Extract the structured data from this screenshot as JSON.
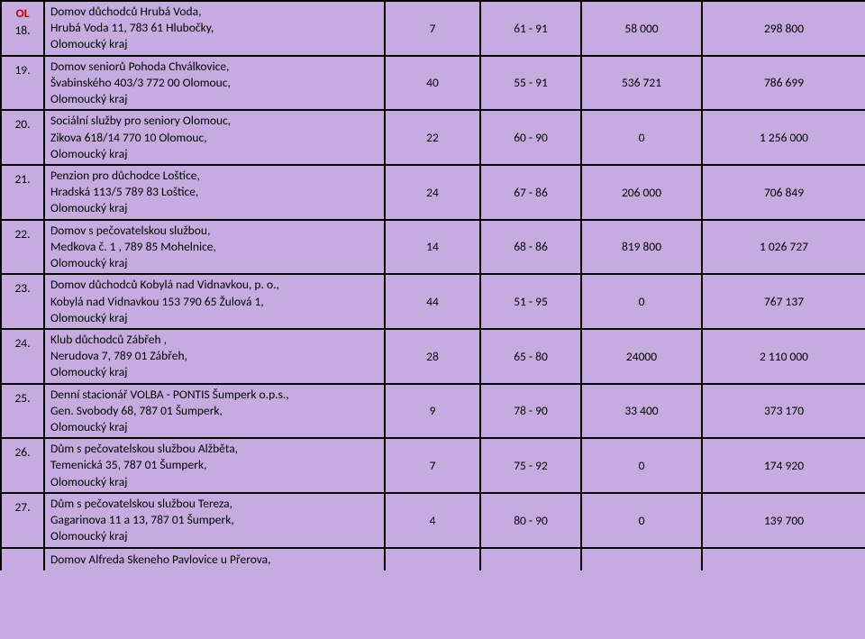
{
  "background": "#c6abe1",
  "rows": [
    {
      "region": "OL",
      "num": "18.",
      "desc_lines": [
        "Domov důchodců Hrubá Voda,",
        "Hrubá Voda 11, 783 61 Hlubočky,",
        "Olomoucký kraj"
      ],
      "c1": "7",
      "c2": "61 - 91",
      "c3": "58 000",
      "c4": "298 800"
    },
    {
      "num": "19.",
      "desc_lines": [
        "Domov seniorů Pohoda Chválkovice,",
        "Švabinského 403/3 772 00 Olomouc,",
        "Olomoucký kraj"
      ],
      "c1": "40",
      "c2": "55 - 91",
      "c3": "536 721",
      "c4": "786 699"
    },
    {
      "num": "20.",
      "desc_lines": [
        "Sociální služby pro seniory Olomouc,",
        "Zikova 618/14 770 10 Olomouc,",
        "Olomoucký kraj"
      ],
      "c1": "22",
      "c2": "60 - 90",
      "c3": "0",
      "c4": "1 256 000"
    },
    {
      "num": "21.",
      "desc_lines": [
        "Penzion pro důchodce Loštice,",
        "Hradská 113/5 789 83 Loštice,",
        "Olomoucký kraj"
      ],
      "c1": "24",
      "c2": "67 - 86",
      "c3": "206 000",
      "c4": "706 849"
    },
    {
      "num": "22.",
      "desc_lines": [
        "Domov s pečovatelskou službou,",
        "Medkova č. 1 , 789 85  Mohelnice,",
        "Olomoucký kraj"
      ],
      "c1": "14",
      "c2": "68 - 86",
      "c3": "819 800",
      "c4": "1 026 727"
    },
    {
      "num": "23.",
      "desc_lines": [
        "Domov důchodců Kobylá nad Vidnavkou, p. o.,",
        "Kobylá nad Vidnavkou 153 790 65 Žulová 1,",
        "Olomoucký kraj"
      ],
      "c1": "44",
      "c2": "51 - 95",
      "c3": "0",
      "c4": "767 137"
    },
    {
      "num": "24.",
      "desc_lines": [
        "Klub důchodců Zábřeh ,",
        "Nerudova 7, 789 01 Zábřeh,",
        "Olomoucký kraj"
      ],
      "c1": "28",
      "c2": "65 - 80",
      "c3": "24000",
      "c4": "2 110 000"
    },
    {
      "num": "25.",
      "desc_lines": [
        "Denní stacionář VOLBA - PONTIS Šumperk o.p.s.,",
        "Gen. Svobody 68, 787 01 Šumperk,",
        "Olomoucký kraj"
      ],
      "c1": "9",
      "c2": "78 - 90",
      "c3": "33 400",
      "c4": "373 170"
    },
    {
      "num": "26.",
      "desc_lines": [
        "Dům s pečovatelskou službou Alžběta,",
        "Temenická 35, 787 01 Šumperk,",
        "Olomoucký kraj"
      ],
      "c1": "7",
      "c2": "75 - 92",
      "c3": "0",
      "c4": "174 920"
    },
    {
      "num": "27.",
      "desc_lines": [
        "Dům s pečovatelskou službou Tereza,",
        "Gagarinova 11 a 13, 787 01 Šumperk,",
        "Olomoucký kraj"
      ],
      "c1": "4",
      "c2": "80 - 90",
      "c3": "0",
      "c4": "139 700"
    }
  ],
  "trailing_row": {
    "desc_line": "Domov Alfreda Skeneho Pavlovice u Přerova,"
  }
}
